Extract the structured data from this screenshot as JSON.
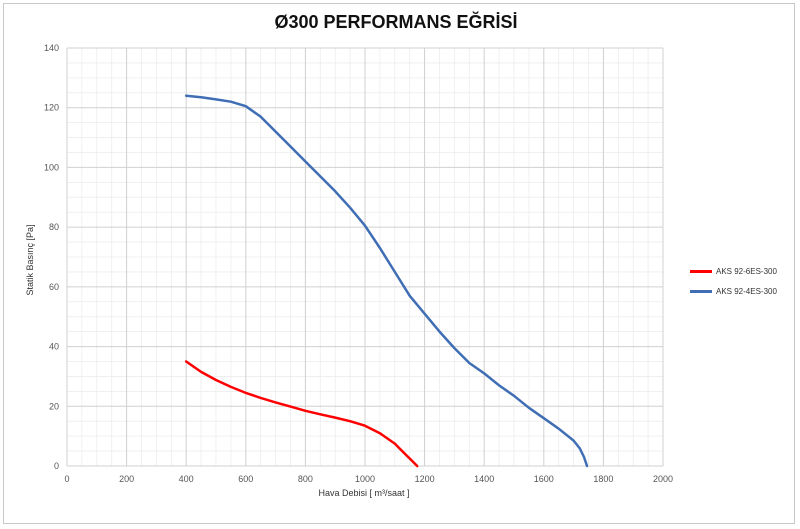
{
  "chart_data": {
    "type": "line",
    "title": "Ø300 PERFORMANS EĞRİSİ",
    "xlabel": "Hava Debisi [ m³/saat ]",
    "ylabel": "Statik Basınç [Pa]",
    "xlim": [
      0,
      2000
    ],
    "ylim": [
      0,
      140
    ],
    "xticks": [
      0,
      200,
      400,
      600,
      800,
      1000,
      1200,
      1400,
      1600,
      1800,
      2000
    ],
    "yticks": [
      0,
      20,
      40,
      60,
      80,
      100,
      120,
      140
    ],
    "grid": true,
    "legend_position": "right",
    "series": [
      {
        "name": "AKS 92-6ES-300",
        "color": "#ff0000",
        "x": [
          400,
          450,
          500,
          550,
          600,
          650,
          700,
          750,
          800,
          850,
          900,
          950,
          1000,
          1050,
          1100,
          1130,
          1150,
          1165,
          1175
        ],
        "y": [
          35,
          31.5,
          28.8,
          26.5,
          24.5,
          22.8,
          21.3,
          19.9,
          18.5,
          17.3,
          16.2,
          15,
          13.5,
          11,
          7.5,
          4.5,
          2.5,
          1,
          0
        ]
      },
      {
        "name": "AKS 92-4ES-300",
        "color": "#3f6eb5",
        "x": [
          400,
          450,
          500,
          550,
          600,
          650,
          700,
          750,
          800,
          850,
          900,
          950,
          1000,
          1050,
          1100,
          1150,
          1200,
          1250,
          1300,
          1350,
          1400,
          1450,
          1500,
          1550,
          1600,
          1650,
          1700,
          1720,
          1735,
          1745
        ],
        "y": [
          124,
          123.5,
          122.8,
          122,
          120.5,
          117,
          112,
          107,
          102,
          97,
          92,
          86.5,
          80.5,
          73,
          65,
          57,
          51,
          45,
          39.5,
          34.5,
          31,
          27,
          23.5,
          19.5,
          16,
          12.5,
          8.5,
          6,
          3,
          0
        ]
      }
    ]
  }
}
